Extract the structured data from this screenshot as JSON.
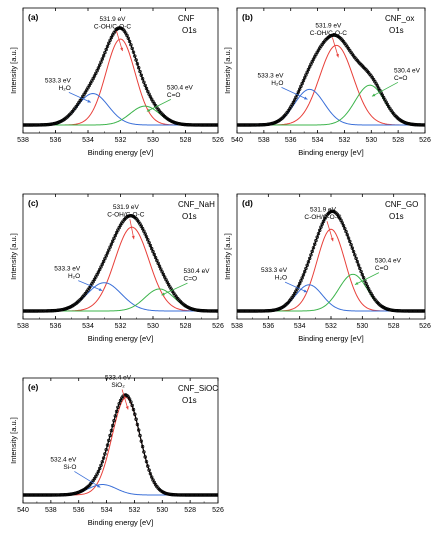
{
  "figure": {
    "xlabel": "Binding energy [eV]",
    "ylabel": "Intensity [a.u.]"
  },
  "chart_data": [
    {
      "type": "line",
      "panel": "(a)",
      "sample": "CNF",
      "region": "O1s",
      "xlim": [
        538,
        526
      ],
      "xticks": [
        "538",
        "536",
        "534",
        "532",
        "530",
        "528",
        "526"
      ],
      "xlabel": "Binding energy [eV]",
      "ylabel": "Intensity [a.u.]",
      "scale_max": 1.04,
      "series": [
        {
          "name": "531.9 eV C-OH/C-O-C",
          "color": "#e8403a",
          "center": 532.0,
          "height": 0.82,
          "sigma": 0.9
        },
        {
          "name": "533.3 eV H2O",
          "color": "#3a6fd8",
          "center": 533.7,
          "height": 0.3,
          "sigma": 0.95
        },
        {
          "name": "530.4 eV C=O",
          "color": "#3cb44b",
          "center": 530.5,
          "height": 0.18,
          "sigma": 0.9
        }
      ],
      "annotations": [
        {
          "lines": [
            "531.9 eV",
            "C-OH/C-O-C"
          ],
          "target": 532.0,
          "anchor": "middle"
        },
        {
          "lines": [
            "533.3 eV",
            "H₂O"
          ],
          "target": 533.7,
          "anchor": "end"
        },
        {
          "lines": [
            "530.4 eV",
            "C=O"
          ],
          "target": 530.5,
          "anchor": "start"
        }
      ]
    },
    {
      "type": "line",
      "panel": "(b)",
      "sample": "CNF_ox",
      "region": "O1s",
      "xlim": [
        540,
        526
      ],
      "xticks": [
        "540",
        "538",
        "536",
        "534",
        "532",
        "530",
        "528",
        "526"
      ],
      "xlabel": "Binding energy [eV]",
      "ylabel": "Intensity [a.u.]",
      "scale_max": 1.04,
      "series": [
        {
          "name": "531.9 eV C-OH/C-O-C",
          "color": "#e8403a",
          "center": 532.6,
          "height": 0.76,
          "sigma": 1.25
        },
        {
          "name": "533.3 eV H2O",
          "color": "#3a6fd8",
          "center": 534.6,
          "height": 0.34,
          "sigma": 1.1
        },
        {
          "name": "530.4 eV C=O",
          "color": "#3cb44b",
          "center": 530.1,
          "height": 0.38,
          "sigma": 1.1
        }
      ],
      "annotations": [
        {
          "lines": [
            "531.9 eV",
            "C-OH/C-O-C"
          ],
          "target": 532.6,
          "anchor": "middle"
        },
        {
          "lines": [
            "533.3 eV",
            "H₂O"
          ],
          "target": 534.6,
          "anchor": "end"
        },
        {
          "lines": [
            "530.4 eV",
            "C=O"
          ],
          "target": 530.1,
          "anchor": "start"
        }
      ]
    },
    {
      "type": "line",
      "panel": "(c)",
      "sample": "CNF_NaH",
      "region": "O1s",
      "xlim": [
        538,
        526
      ],
      "xticks": [
        "538",
        "536",
        "534",
        "532",
        "530",
        "528",
        "526"
      ],
      "xlabel": "Binding energy [eV]",
      "ylabel": "Intensity [a.u.]",
      "scale_max": 1.04,
      "series": [
        {
          "name": "531.9 eV C-OH/C-O-C",
          "color": "#e8403a",
          "center": 531.3,
          "height": 0.8,
          "sigma": 1.05
        },
        {
          "name": "533.3 eV H2O",
          "color": "#3a6fd8",
          "center": 533.0,
          "height": 0.27,
          "sigma": 1.05
        },
        {
          "name": "530.4 eV C=O",
          "color": "#3cb44b",
          "center": 529.6,
          "height": 0.21,
          "sigma": 0.9
        }
      ],
      "annotations": [
        {
          "lines": [
            "531.9 eV",
            "C-OH/C-O-C"
          ],
          "target": 531.3,
          "anchor": "middle"
        },
        {
          "lines": [
            "533.3 eV",
            "H₂O"
          ],
          "target": 533.0,
          "anchor": "end"
        },
        {
          "lines": [
            "530.4 eV",
            "C=O"
          ],
          "target": 529.6,
          "anchor": "start"
        }
      ]
    },
    {
      "type": "line",
      "panel": "(d)",
      "sample": "CNF_GO",
      "region": "O1s",
      "xlim": [
        538,
        526
      ],
      "xticks": [
        "538",
        "536",
        "534",
        "532",
        "530",
        "528",
        "526"
      ],
      "xlabel": "Binding energy [eV]",
      "ylabel": "Intensity [a.u.]",
      "scale_max": 1.04,
      "series": [
        {
          "name": "531.9 eV C-OH/C-O-C",
          "color": "#e8403a",
          "center": 532.0,
          "height": 0.78,
          "sigma": 0.9
        },
        {
          "name": "533.3 eV H2O",
          "color": "#3a6fd8",
          "center": 533.4,
          "height": 0.25,
          "sigma": 0.85
        },
        {
          "name": "530.4 eV C=O",
          "color": "#3cb44b",
          "center": 530.6,
          "height": 0.35,
          "sigma": 0.9
        }
      ],
      "annotations": [
        {
          "lines": [
            "531.9 eV",
            "C-OH/C-O-C"
          ],
          "target": 532.0,
          "anchor": "middle"
        },
        {
          "lines": [
            "533.3 eV",
            "H₂O"
          ],
          "target": 533.4,
          "anchor": "end"
        },
        {
          "lines": [
            "530.4 eV",
            "C=O"
          ],
          "target": 530.6,
          "anchor": "start"
        }
      ]
    },
    {
      "type": "line",
      "panel": "(e)",
      "sample": "CNF_SiOC",
      "region": "O1s",
      "xlim": [
        540,
        526
      ],
      "xticks": [
        "540",
        "538",
        "536",
        "534",
        "532",
        "530",
        "528",
        "526"
      ],
      "xlabel": "Binding energy [eV]",
      "ylabel": "Intensity [a.u.]",
      "scale_max": 1.04,
      "series": [
        {
          "name": "533.4 eV SiO2",
          "color": "#e8403a",
          "center": 532.6,
          "height": 0.93,
          "sigma": 1.0
        },
        {
          "name": "532.4 eV Si-O",
          "color": "#3a6fd8",
          "center": 534.3,
          "height": 0.1,
          "sigma": 1.0
        }
      ],
      "annotations": [
        {
          "lines": [
            "533.4 eV",
            "SiO₂"
          ],
          "target": 532.6,
          "anchor": "middle"
        },
        {
          "lines": [
            "532.4 eV",
            "Si-O"
          ],
          "target": 534.3,
          "anchor": "end"
        }
      ]
    }
  ]
}
